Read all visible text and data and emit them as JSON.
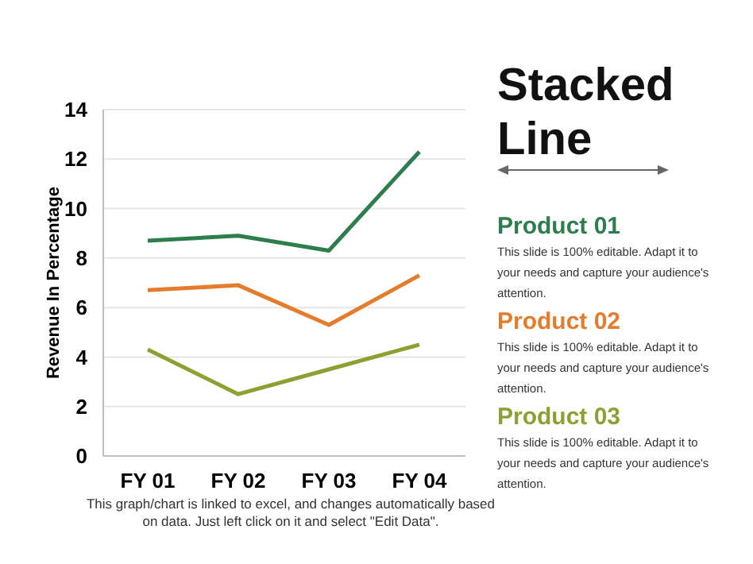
{
  "chart_data": {
    "type": "line",
    "title": "Stacked Line",
    "ylabel": "Revenue In Percentage",
    "categories": [
      "FY 01",
      "FY 02",
      "FY 03",
      "FY 04"
    ],
    "series": [
      {
        "name": "Product 01",
        "color": "#2e7d4f",
        "values": [
          8.7,
          8.9,
          8.3,
          12.3
        ]
      },
      {
        "name": "Product 02",
        "color": "#e57c2c",
        "values": [
          6.7,
          6.9,
          5.3,
          7.3
        ]
      },
      {
        "name": "Product 03",
        "color": "#8fa033",
        "values": [
          4.3,
          2.5,
          3.5,
          4.5
        ]
      }
    ],
    "ylim": [
      0,
      14
    ],
    "yticks": [
      0,
      2,
      4,
      6,
      8,
      10,
      12,
      14
    ],
    "grid": "y",
    "legend": "right",
    "marker": "none",
    "line_style": "solid",
    "annotations": [
      "This slide is 100% editable. Adapt it to your needs and capture your audience's attention.",
      "This slide is 100% editable. Adapt it to your needs and capture your audience's attention.",
      "This slide is 100% editable. Adapt it to your needs and capture your audience's attention.",
      "This graph/chart is linked to excel, and changes automatically based on data. Just left click on it and select \"Edit Data\"."
    ]
  }
}
